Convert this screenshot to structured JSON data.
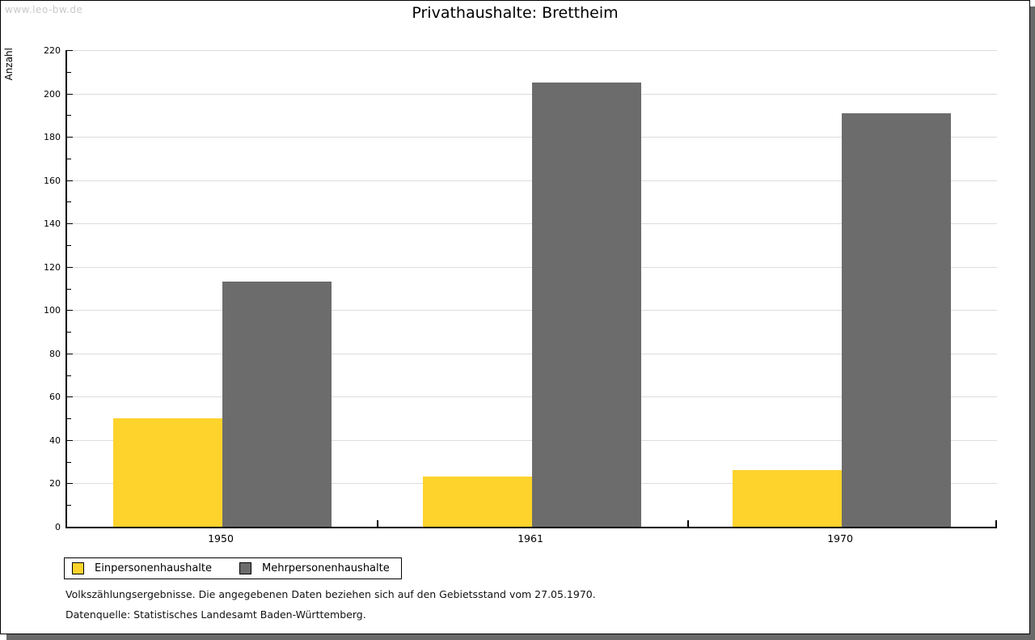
{
  "watermark": "www.leo-bw.de",
  "chart_data": {
    "type": "bar",
    "title": "Privathaushalte: Brettheim",
    "ylabel": "Anzahl",
    "categories": [
      "1950",
      "1961",
      "1970"
    ],
    "series": [
      {
        "name": "Einpersonenhaushalte",
        "color": "#fdd32c",
        "values": [
          50,
          23,
          26
        ]
      },
      {
        "name": "Mehrpersonenhaushalte",
        "color": "#6c6c6c",
        "values": [
          113,
          205,
          191
        ]
      }
    ],
    "ylim": [
      0,
      220
    ],
    "ytick_step": 20,
    "yminor_step": 10,
    "grid": "horizontal-major",
    "legend_position": "below-left",
    "colors": {
      "gridline": "#dcdcdc",
      "axis": "#000000",
      "frame_shadow": "#696969"
    }
  },
  "footer": {
    "line1": "Volkszählungsergebnisse. Die angegebenen Daten beziehen sich auf den Gebietsstand vom 27.05.1970.",
    "line2": "Datenquelle: Statistisches Landesamt Baden-Württemberg."
  }
}
